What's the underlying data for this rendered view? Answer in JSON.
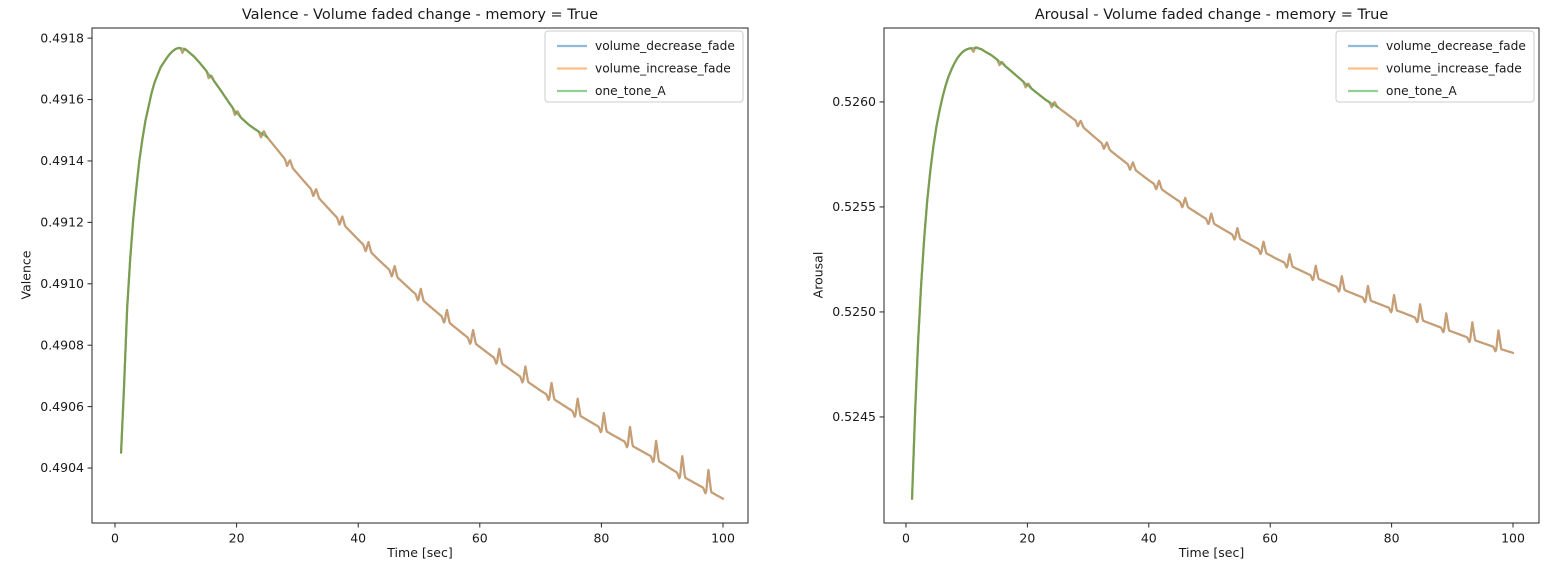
{
  "figure": {
    "background": "#ffffff",
    "text_color": "#1a1a1a",
    "axis_color": "#262626"
  },
  "chart_data": [
    {
      "type": "line",
      "title": "Valence - Volume faded change - memory = True",
      "xlabel": "Time [sec]",
      "ylabel": "Valence",
      "xlim": [
        -3.78,
        104.11
      ],
      "ylim": [
        0.490221,
        0.491833
      ],
      "xticks": [
        0,
        20,
        40,
        60,
        80,
        100
      ],
      "xtick_labels": [
        "0",
        "20",
        "40",
        "60",
        "80",
        "100"
      ],
      "yticks": [
        0.4904,
        0.4906,
        0.4908,
        0.491,
        0.4912,
        0.4914,
        0.4916,
        0.4918
      ],
      "ytick_labels": [
        "0.4904",
        "0.4906",
        "0.4908",
        "0.4910",
        "0.4912",
        "0.4914",
        "0.4916",
        "0.4918"
      ],
      "grid": false,
      "legend_position": "upper right",
      "anchors": [
        [
          1,
          0.49045
        ],
        [
          1.5,
          0.49067
        ],
        [
          2,
          0.49092
        ],
        [
          2.5,
          0.49108
        ],
        [
          3,
          0.49121
        ],
        [
          3.5,
          0.49131
        ],
        [
          4,
          0.4914
        ],
        [
          4.5,
          0.49147
        ],
        [
          5,
          0.49153
        ],
        [
          5.5,
          0.491575
        ],
        [
          6,
          0.49162
        ],
        [
          6.5,
          0.491655
        ],
        [
          7,
          0.49168
        ],
        [
          7.5,
          0.491705
        ],
        [
          8,
          0.49172
        ],
        [
          8.5,
          0.491735
        ],
        [
          9,
          0.491748
        ],
        [
          9.5,
          0.491758
        ],
        [
          10,
          0.491765
        ],
        [
          10.5,
          0.491768
        ],
        [
          11,
          0.491767
        ],
        [
          11.5,
          0.491763
        ],
        [
          12,
          0.491757
        ],
        [
          13,
          0.49174
        ],
        [
          14,
          0.491718
        ],
        [
          15,
          0.491694
        ],
        [
          16,
          0.491668
        ],
        [
          17,
          0.491641
        ],
        [
          18,
          0.491612
        ],
        [
          19,
          0.491583
        ],
        [
          20,
          0.491556
        ],
        [
          21,
          0.491536
        ],
        [
          22,
          0.491518
        ],
        [
          23,
          0.491504
        ],
        [
          24,
          0.491491
        ],
        [
          25,
          0.491478
        ],
        [
          28,
          0.491405
        ],
        [
          31,
          0.491336
        ],
        [
          34,
          0.491269
        ],
        [
          37,
          0.491205
        ],
        [
          40,
          0.491144
        ],
        [
          43,
          0.491085
        ],
        [
          46,
          0.491029
        ],
        [
          49,
          0.490974
        ],
        [
          52,
          0.490923
        ],
        [
          55,
          0.490873
        ],
        [
          58,
          0.490825
        ],
        [
          61,
          0.490779
        ],
        [
          64,
          0.490735
        ],
        [
          67,
          0.490693
        ],
        [
          70,
          0.490652
        ],
        [
          73,
          0.490614
        ],
        [
          76,
          0.490576
        ],
        [
          79,
          0.490541
        ],
        [
          82,
          0.490506
        ],
        [
          85,
          0.490473
        ],
        [
          88,
          0.49044
        ],
        [
          91,
          0.490403
        ],
        [
          94,
          0.490366
        ],
        [
          97,
          0.490333
        ],
        [
          100,
          0.4903
        ]
      ],
      "spikes": {
        "times": [
          11.6,
          15.9,
          20.2,
          24.5,
          28.8,
          33.1,
          37.4,
          41.7,
          46,
          50.3,
          54.6,
          58.9,
          63.2,
          67.5,
          71.8,
          76.1,
          80.4,
          84.7,
          89,
          93.3,
          97.6
        ],
        "heights_microunits": [
          2.7,
          5.9,
          9.2,
          12.4,
          15.6,
          18.8,
          22.1,
          25.3,
          28.5,
          31.7,
          35,
          38.2,
          41.4,
          44.6,
          47.9,
          51.1,
          54.3,
          57.5,
          60.8,
          64,
          67.2
        ],
        "dip_depth_microunits": 14
      },
      "series": [
        {
          "name": "volume_decrease_fade",
          "color": "#1f77b4",
          "alpha": 0.5,
          "t_start": 1,
          "t_end": 100,
          "has_spikes": true
        },
        {
          "name": "volume_increase_fade",
          "color": "#ff7f0e",
          "alpha": 0.5,
          "t_start": 1,
          "t_end": 100,
          "has_spikes": true
        },
        {
          "name": "one_tone_A",
          "color": "#2ca02c",
          "alpha": 0.5,
          "t_start": 1,
          "t_end": 25,
          "has_spikes": false
        }
      ]
    },
    {
      "type": "line",
      "title": "Arousal - Volume faded change - memory = True",
      "xlabel": "Time [sec]",
      "ylabel": "Arousal",
      "xlim": [
        -3.62,
        104.28
      ],
      "ylim": [
        0.523995,
        0.526352
      ],
      "xticks": [
        0,
        20,
        40,
        60,
        80,
        100
      ],
      "xtick_labels": [
        "0",
        "20",
        "40",
        "60",
        "80",
        "100"
      ],
      "yticks": [
        0.5245,
        0.525,
        0.5255,
        0.526
      ],
      "ytick_labels": [
        "0.5245",
        "0.5250",
        "0.5255",
        "0.5260"
      ],
      "grid": false,
      "legend_position": "upper right",
      "anchors": [
        [
          1,
          0.52411
        ],
        [
          1.5,
          0.52452
        ],
        [
          2,
          0.52486
        ],
        [
          2.5,
          0.52513
        ],
        [
          3,
          0.52535
        ],
        [
          3.5,
          0.52553
        ],
        [
          4,
          0.52567
        ],
        [
          4.5,
          0.525785
        ],
        [
          5,
          0.52588
        ],
        [
          5.5,
          0.525955
        ],
        [
          6,
          0.52602
        ],
        [
          6.5,
          0.526075
        ],
        [
          7,
          0.52612
        ],
        [
          7.5,
          0.526155
        ],
        [
          8,
          0.526185
        ],
        [
          8.5,
          0.52621
        ],
        [
          9,
          0.526228
        ],
        [
          9.5,
          0.526242
        ],
        [
          10,
          0.52625
        ],
        [
          10.5,
          0.526255
        ],
        [
          11,
          0.526257
        ],
        [
          11.5,
          0.526257
        ],
        [
          12,
          0.526255
        ],
        [
          12.5,
          0.52625
        ],
        [
          13,
          0.52624
        ],
        [
          14,
          0.526224
        ],
        [
          15,
          0.526202
        ],
        [
          16,
          0.526179
        ],
        [
          17,
          0.526155
        ],
        [
          18,
          0.52613
        ],
        [
          19,
          0.526105
        ],
        [
          20,
          0.52608
        ],
        [
          21,
          0.526056
        ],
        [
          22,
          0.526033
        ],
        [
          23,
          0.52601
        ],
        [
          24,
          0.525992
        ],
        [
          25,
          0.525975
        ],
        [
          28,
          0.52591
        ],
        [
          31,
          0.525834
        ],
        [
          34,
          0.525761
        ],
        [
          37,
          0.525693
        ],
        [
          40,
          0.525627
        ],
        [
          43,
          0.525566
        ],
        [
          46,
          0.525507
        ],
        [
          49,
          0.525451
        ],
        [
          52,
          0.525398
        ],
        [
          55,
          0.525348
        ],
        [
          58,
          0.5253
        ],
        [
          61,
          0.525254
        ],
        [
          64,
          0.525211
        ],
        [
          67,
          0.52517
        ],
        [
          70,
          0.525131
        ],
        [
          73,
          0.525095
        ],
        [
          76,
          0.52506
        ],
        [
          79,
          0.525026
        ],
        [
          82,
          0.524995
        ],
        [
          85,
          0.52496
        ],
        [
          88,
          0.524927
        ],
        [
          91,
          0.524895
        ],
        [
          94,
          0.524862
        ],
        [
          97,
          0.524832
        ],
        [
          100,
          0.524805
        ]
      ],
      "spikes": {
        "times": [
          11.6,
          15.9,
          20.2,
          24.5,
          28.8,
          33.1,
          37.4,
          41.7,
          46,
          50.3,
          54.6,
          58.9,
          63.2,
          67.5,
          71.8,
          76.1,
          80.4,
          84.7,
          89,
          93.3,
          97.6
        ],
        "heights_microunits": [
          3.4,
          7.5,
          11.6,
          15.7,
          19.8,
          23.8,
          27.9,
          32,
          36.1,
          40.2,
          44.3,
          48.4,
          52.4,
          56.5,
          60.6,
          64.7,
          68.8,
          72.9,
          77,
          81,
          85.1
        ],
        "dip_depth_microunits": 18
      },
      "series": [
        {
          "name": "volume_decrease_fade",
          "color": "#1f77b4",
          "alpha": 0.5,
          "t_start": 1,
          "t_end": 100,
          "has_spikes": true
        },
        {
          "name": "volume_increase_fade",
          "color": "#ff7f0e",
          "alpha": 0.5,
          "t_start": 1,
          "t_end": 100,
          "has_spikes": true
        },
        {
          "name": "one_tone_A",
          "color": "#2ca02c",
          "alpha": 0.5,
          "t_start": 1,
          "t_end": 25,
          "has_spikes": false
        }
      ]
    }
  ]
}
